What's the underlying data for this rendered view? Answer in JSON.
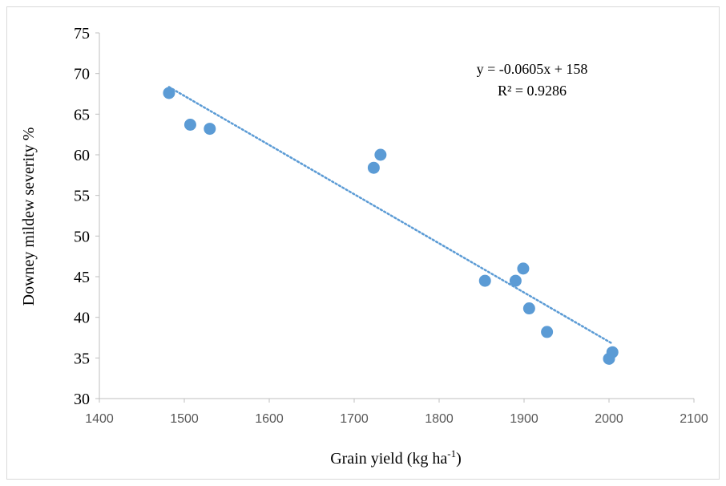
{
  "chart_data": {
    "type": "scatter",
    "xlabel": "Grain yield (kg ha",
    "xlabel_superscript": "-1",
    "xlabel_suffix": ")",
    "ylabel": "Downey mildew severity %",
    "xlim": [
      1400,
      2100
    ],
    "ylim": [
      30,
      75
    ],
    "x_ticks": [
      "1400",
      "1500",
      "1600",
      "1700",
      "1800",
      "1900",
      "2000",
      "2100"
    ],
    "y_ticks": [
      "30",
      "35",
      "40",
      "45",
      "50",
      "55",
      "60",
      "65",
      "70",
      "75"
    ],
    "grid": false,
    "legend": "none",
    "series": [
      {
        "points": [
          {
            "x": 1482,
            "y": 67.6
          },
          {
            "x": 1507,
            "y": 63.7
          },
          {
            "x": 1530,
            "y": 63.2
          },
          {
            "x": 1723,
            "y": 58.4
          },
          {
            "x": 1731,
            "y": 60.0
          },
          {
            "x": 1854,
            "y": 44.5
          },
          {
            "x": 1890,
            "y": 44.5
          },
          {
            "x": 1899,
            "y": 46.0
          },
          {
            "x": 1906,
            "y": 41.1
          },
          {
            "x": 1927,
            "y": 38.2
          },
          {
            "x": 2000,
            "y": 34.9
          },
          {
            "x": 2004,
            "y": 35.7
          }
        ]
      }
    ],
    "trendline": {
      "slope": -0.0605,
      "intercept": 158,
      "x_range": [
        1482,
        2004
      ],
      "style": "dotted"
    },
    "annotations": {
      "equation": "y = -0.0605x + 158",
      "r_squared": "R² = 0.9286"
    },
    "colors": {
      "marker": "#5b9bd5",
      "trendline": "#5b9bd5",
      "axis": "#bfbfbf"
    }
  }
}
